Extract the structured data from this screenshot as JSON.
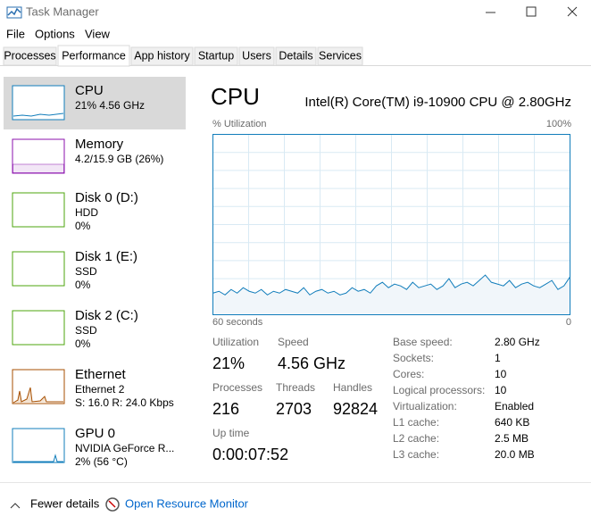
{
  "window": {
    "title": "Task Manager"
  },
  "menu": [
    "File",
    "Options",
    "View"
  ],
  "tabs": [
    "Processes",
    "Performance",
    "App history",
    "Startup",
    "Users",
    "Details",
    "Services"
  ],
  "sidebar": [
    {
      "name": "CPU",
      "lines": [
        "21%  4.56 GHz"
      ]
    },
    {
      "name": "Memory",
      "lines": [
        "4.2/15.9 GB (26%)"
      ]
    },
    {
      "name": "Disk 0 (D:)",
      "lines": [
        "HDD",
        "0%"
      ]
    },
    {
      "name": "Disk 1 (E:)",
      "lines": [
        "SSD",
        "0%"
      ]
    },
    {
      "name": "Disk 2 (C:)",
      "lines": [
        "SSD",
        "0%"
      ]
    },
    {
      "name": "Ethernet",
      "lines": [
        "Ethernet 2",
        "S: 16.0  R: 24.0 Kbps"
      ]
    },
    {
      "name": "GPU 0",
      "lines": [
        "NVIDIA GeForce R...",
        "2% (56 °C)"
      ]
    }
  ],
  "main": {
    "title": "CPU",
    "cpu_name": "Intel(R) Core(TM) i9-10900 CPU @ 2.80GHz",
    "graph": {
      "y_label": "% Utilization",
      "y_max_label": "100%",
      "x_left_label": "60 seconds",
      "x_right_label": "0",
      "ylim": [
        0,
        100
      ],
      "values": [
        12,
        13,
        11,
        14,
        12,
        15,
        13,
        12,
        14,
        11,
        13,
        12,
        14,
        13,
        12,
        15,
        11,
        13,
        14,
        12,
        13,
        11,
        12,
        15,
        13,
        14,
        12,
        16,
        18,
        15,
        17,
        16,
        14,
        18,
        15,
        16,
        17,
        14,
        16,
        20,
        15,
        17,
        18,
        16,
        19,
        22,
        18,
        17,
        16,
        19,
        15,
        17,
        18,
        16,
        15,
        17,
        19,
        14,
        16,
        21
      ]
    },
    "stats": [
      {
        "label": "Utilization",
        "value": "21%"
      },
      {
        "label": "Speed",
        "value": "4.56 GHz"
      },
      {
        "label": "Processes",
        "value": "216"
      },
      {
        "label": "Threads",
        "value": "2703"
      },
      {
        "label": "Handles",
        "value": "92824"
      },
      {
        "label": "Up time",
        "value": "0:00:07:52"
      }
    ],
    "details": [
      {
        "label": "Base speed:",
        "value": "2.80 GHz"
      },
      {
        "label": "Sockets:",
        "value": "1"
      },
      {
        "label": "Cores:",
        "value": "10"
      },
      {
        "label": "Logical processors:",
        "value": "10"
      },
      {
        "label": "Virtualization:",
        "value": "Enabled"
      },
      {
        "label": "L1 cache:",
        "value": "640 KB"
      },
      {
        "label": "L2 cache:",
        "value": "2.5 MB"
      },
      {
        "label": "L3 cache:",
        "value": "20.0 MB"
      }
    ]
  },
  "footer": {
    "fewer_details": "Fewer details",
    "resource_monitor": "Open Resource Monitor"
  }
}
